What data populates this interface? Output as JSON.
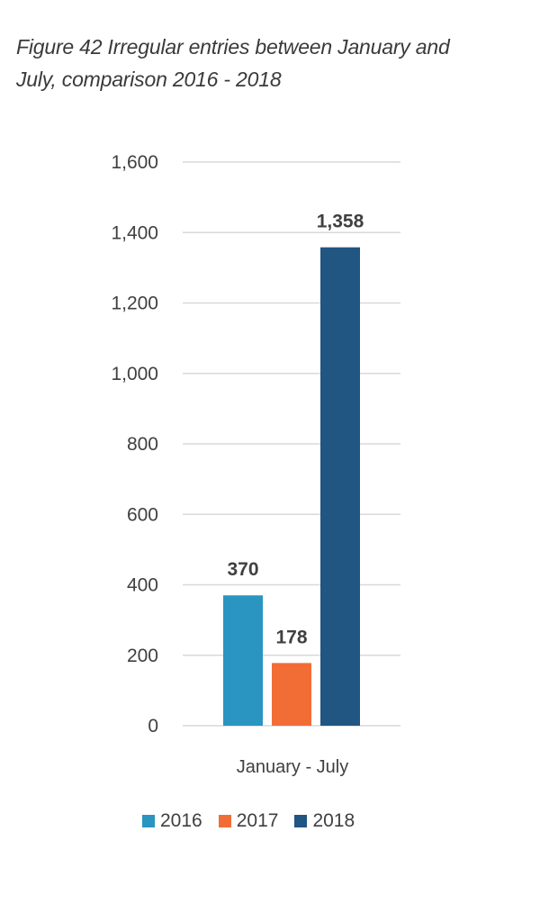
{
  "chart_data": {
    "type": "bar",
    "title": "Figure 42 Irregular entries between January and July, comparison 2016 - 2018",
    "title_lines": [
      "Figure 42 Irregular entries between January and",
      "July, comparison 2016 - 2018"
    ],
    "categories": [
      "January - July"
    ],
    "series": [
      {
        "name": "2016",
        "values": [
          370
        ],
        "color": "#2a95c0"
      },
      {
        "name": "2017",
        "values": [
          178
        ],
        "color": "#f26d35"
      },
      {
        "name": "2018",
        "values": [
          1358
        ],
        "color": "#215582"
      }
    ],
    "data_labels": [
      "370",
      "178",
      "1,358"
    ],
    "yticks": [
      0,
      200,
      400,
      600,
      800,
      1000,
      1200,
      1400,
      1600
    ],
    "ytick_labels": [
      "0",
      "200",
      "400",
      "600",
      "800",
      "1,000",
      "1,200",
      "1,400",
      "1,600"
    ],
    "ylim": [
      0,
      1600
    ],
    "xlabel": "",
    "ylabel": "",
    "grid": true,
    "legend_position": "bottom"
  }
}
